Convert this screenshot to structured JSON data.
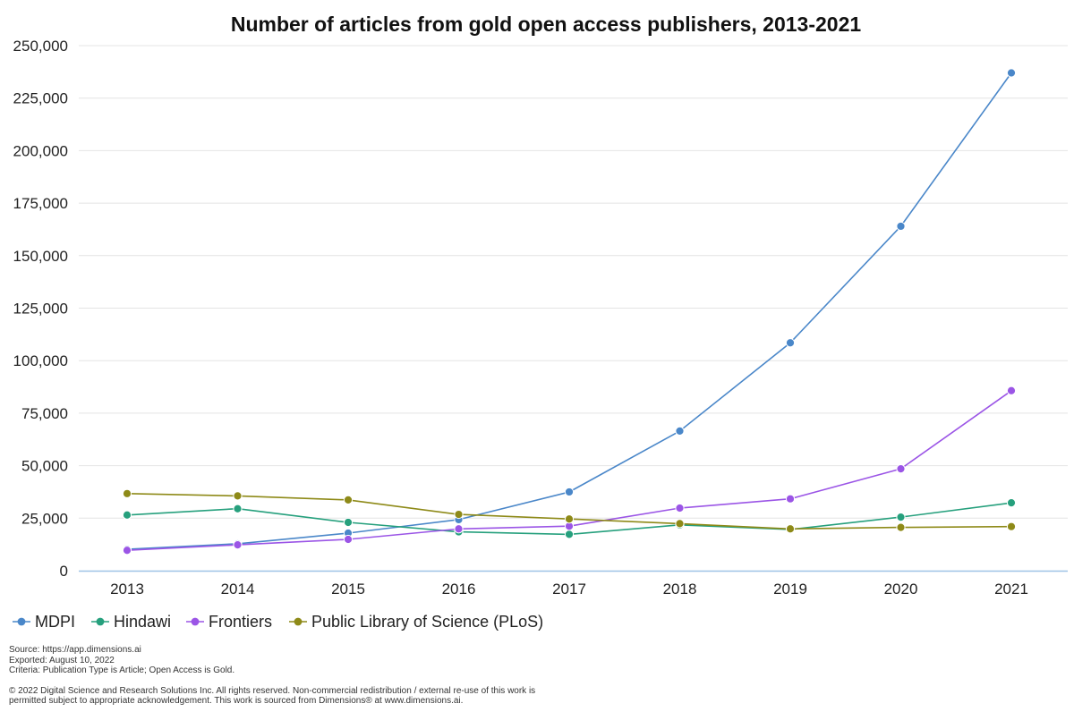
{
  "chart_data": {
    "type": "line",
    "title": "Number of articles from gold open access publishers, 2013-2021",
    "xlabel": "",
    "ylabel": "",
    "categories": [
      "2013",
      "2014",
      "2015",
      "2016",
      "2017",
      "2018",
      "2019",
      "2020",
      "2021"
    ],
    "ylim": [
      0,
      250000
    ],
    "yticks": [
      0,
      25000,
      50000,
      75000,
      100000,
      125000,
      150000,
      175000,
      200000,
      225000,
      250000
    ],
    "ytick_labels": [
      "0",
      "25,000",
      "50,000",
      "75,000",
      "100,000",
      "125,000",
      "150,000",
      "175,000",
      "200,000",
      "225,000",
      "250,000"
    ],
    "grid": true,
    "legend_position": "bottom-left",
    "series": [
      {
        "name": "MDPI",
        "color": "#4a87c9",
        "values": [
          10200,
          12800,
          17900,
          24300,
          37500,
          66500,
          108500,
          164000,
          237000
        ]
      },
      {
        "name": "Hindawi",
        "color": "#26a07d",
        "values": [
          26500,
          29500,
          23000,
          18500,
          17300,
          21800,
          19600,
          25500,
          32300
        ]
      },
      {
        "name": "Frontiers",
        "color": "#9b55e6",
        "values": [
          9700,
          12300,
          14900,
          19900,
          21200,
          29800,
          34200,
          48500,
          85700
        ]
      },
      {
        "name": "Public Library of Science (PLoS)",
        "color": "#8e8a18",
        "values": [
          36700,
          35600,
          33700,
          26800,
          24600,
          22400,
          19900,
          20600,
          21000
        ]
      }
    ]
  },
  "footnotes": {
    "source": "Source: https://app.dimensions.ai",
    "exported": "Exported: August 10, 2022",
    "criteria": "Criteria: Publication Type is Article; Open Access is Gold.",
    "copyright_line1": "© 2022 Digital Science and Research Solutions Inc. All rights reserved. Non-commercial redistribution / external re-use of this work is",
    "copyright_line2": "permitted subject to appropriate acknowledgement. This work is sourced from Dimensions® at www.dimensions.ai."
  }
}
